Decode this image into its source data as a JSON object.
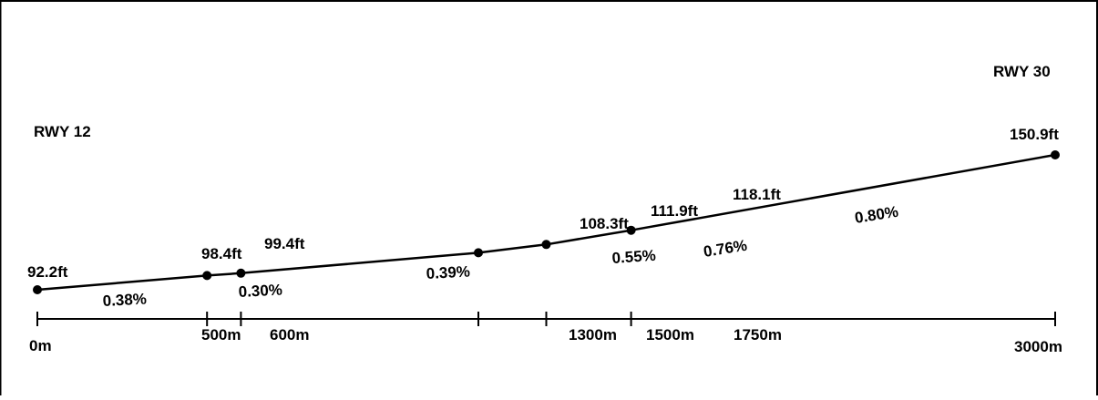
{
  "diagram": {
    "runway_ends": {
      "left": "RWY 12",
      "right": "RWY 30"
    },
    "points": [
      {
        "distance_label": "0m",
        "elevation_label": "92.2ft"
      },
      {
        "distance_label": "500m",
        "elevation_label": "98.4ft"
      },
      {
        "distance_label": "600m",
        "elevation_label": "99.4ft"
      },
      {
        "distance_label": "1300m",
        "elevation_label": "108.3ft"
      },
      {
        "distance_label": "1500m",
        "elevation_label": "111.9ft"
      },
      {
        "distance_label": "1750m",
        "elevation_label": "118.1ft"
      },
      {
        "distance_label": "3000m",
        "elevation_label": "150.9ft"
      }
    ],
    "gradients": [
      "0.38%",
      "0.30%",
      "0.39%",
      "0.55%",
      "0.76%",
      "0.80%"
    ],
    "colors": {
      "line": "#000000",
      "background": "#ffffff",
      "border": "#000000"
    }
  }
}
